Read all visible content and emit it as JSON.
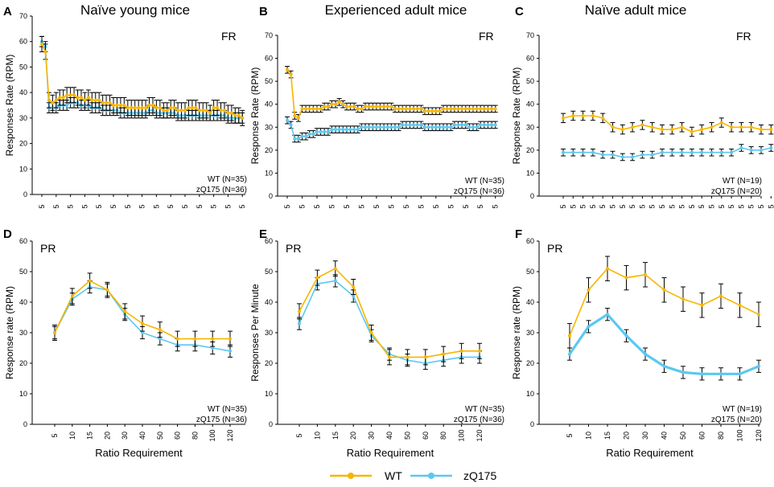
{
  "colors": {
    "wt": "#F7B500",
    "zq": "#5BC8F0",
    "err": "#000000",
    "axis": "#000000"
  },
  "legend": {
    "wt_label": "WT",
    "zq_label": "zQ175"
  },
  "chart_data": [
    {
      "id": "A",
      "letter": "A",
      "title": "Naïve young mice",
      "tag": "FR",
      "type": "line",
      "ylabel": "Responses  Rate (RPM)",
      "xlabel": "",
      "ylim": [
        0,
        70
      ],
      "yticks": [
        0,
        10,
        20,
        30,
        40,
        50,
        60,
        70
      ],
      "grid": false,
      "categories": [
        "5",
        "5",
        "5",
        "5",
        "5",
        "5",
        "5",
        "5",
        "5",
        "5",
        "5",
        "5",
        "5",
        "5",
        "5",
        "5",
        "5",
        "5",
        "5",
        "5",
        "5",
        "5",
        "5",
        "5",
        "5",
        "5",
        "5",
        "5",
        "5",
        "5",
        "5",
        "5",
        "5",
        "5",
        "5",
        "5",
        "5",
        "5",
        "5",
        "5",
        "5",
        "5",
        "5",
        "5",
        "5",
        "5",
        "5",
        "5",
        "5",
        "5",
        "5",
        "5",
        "5",
        "5",
        "5",
        "5",
        "5"
      ],
      "tick_every": 4,
      "n_labels": [
        "WT (N=35)",
        "zQ175 (N=36)"
      ],
      "series": [
        {
          "name": "WT",
          "err": 3,
          "values": [
            59,
            56,
            37,
            36,
            37,
            38,
            38,
            39,
            39,
            39,
            38,
            38,
            37,
            38,
            37,
            37,
            37,
            36,
            36,
            36,
            35,
            35,
            35,
            35,
            34,
            34,
            34,
            34,
            34,
            34,
            35,
            35,
            34,
            34,
            33,
            33,
            34,
            34,
            33,
            33,
            33,
            34,
            34,
            34,
            33,
            33,
            33,
            32,
            34,
            34,
            33,
            33,
            32,
            32,
            31,
            31,
            30
          ]
        },
        {
          "name": "zQ175",
          "err": 2,
          "values": [
            60,
            58,
            34,
            34,
            34,
            35,
            35,
            35,
            36,
            36,
            36,
            35,
            35,
            35,
            34,
            34,
            34,
            33,
            33,
            33,
            33,
            33,
            32,
            32,
            32,
            32,
            32,
            32,
            32,
            32,
            33,
            33,
            32,
            32,
            32,
            32,
            32,
            32,
            31,
            31,
            31,
            31,
            31,
            31,
            31,
            31,
            31,
            31,
            31,
            31,
            31,
            31,
            30,
            30,
            30,
            30,
            30
          ]
        }
      ]
    },
    {
      "id": "B",
      "letter": "B",
      "title": "Experienced adult mice",
      "tag": "FR",
      "type": "line",
      "ylabel": "Response Rate (RPM)",
      "xlabel": "",
      "ylim": [
        0,
        70
      ],
      "yticks": [
        0,
        10,
        20,
        30,
        40,
        50,
        60,
        70
      ],
      "grid": false,
      "categories": [
        "5",
        "5",
        "5",
        "5",
        "5",
        "5",
        "5",
        "5",
        "5",
        "5",
        "5",
        "5",
        "5",
        "5",
        "5",
        "5",
        "5",
        "5",
        "5",
        "5",
        "5",
        "5",
        "5",
        "5",
        "5",
        "5",
        "5",
        "5",
        "5",
        "5",
        "5",
        "5",
        "5",
        "5",
        "5",
        "5",
        "5",
        "5",
        "5",
        "5",
        "5",
        "5",
        "5",
        "5",
        "5",
        "5",
        "5",
        "5",
        "5",
        "5",
        "5",
        "5",
        "5",
        "5",
        "5",
        "5",
        "5"
      ],
      "tick_every": 4,
      "n_labels": [
        "WT (N=35)",
        "zQ175 (N=36)"
      ],
      "series": [
        {
          "name": "WT",
          "err": 1.5,
          "values": [
            55,
            53,
            35,
            34,
            38,
            38,
            38,
            38,
            38,
            38,
            39,
            39,
            40,
            40,
            41,
            40,
            39,
            39,
            39,
            38,
            38,
            39,
            39,
            39,
            39,
            39,
            39,
            39,
            39,
            38,
            38,
            38,
            38,
            38,
            38,
            38,
            38,
            37,
            37,
            37,
            37,
            37,
            38,
            38,
            38,
            38,
            38,
            38,
            38,
            38,
            38,
            38,
            38,
            38,
            38,
            38,
            38
          ]
        },
        {
          "name": "zQ175",
          "err": 1.5,
          "values": [
            33,
            31,
            25,
            25,
            26,
            26,
            27,
            27,
            28,
            28,
            28,
            28,
            29,
            29,
            29,
            29,
            29,
            29,
            29,
            29,
            30,
            30,
            30,
            30,
            30,
            30,
            30,
            30,
            30,
            30,
            30,
            31,
            31,
            31,
            31,
            31,
            31,
            30,
            30,
            30,
            30,
            30,
            30,
            30,
            30,
            31,
            31,
            31,
            31,
            30,
            30,
            30,
            31,
            31,
            31,
            31,
            31
          ]
        }
      ]
    },
    {
      "id": "C",
      "letter": "C",
      "title": "Naïve adult mice",
      "tag": "FR",
      "type": "line",
      "ylabel": "Response Rate  (RPM)",
      "xlabel": "",
      "ylim": [
        0,
        70
      ],
      "yticks": [
        0,
        10,
        20,
        30,
        40,
        50,
        60,
        70
      ],
      "grid": false,
      "categories": [
        "5",
        "5",
        "5",
        "5",
        "5",
        "5",
        "5",
        "5",
        "5",
        "5",
        "5",
        "5",
        "5",
        "5",
        "5",
        "5",
        "5",
        "5",
        "5",
        "5",
        "5",
        "5"
      ],
      "tick_every": 1,
      "n_labels": [
        "WT (N=19)",
        "zQ175 (N=20)"
      ],
      "series": [
        {
          "name": "WT",
          "err": 2,
          "values": [
            34,
            35,
            35,
            35,
            34,
            30,
            29,
            30,
            31,
            30,
            29,
            29,
            30,
            28,
            29,
            30,
            32,
            30,
            30,
            30,
            29,
            29
          ]
        },
        {
          "name": "zQ175",
          "err": 1.5,
          "values": [
            19,
            19,
            19,
            19,
            18,
            18,
            17,
            17,
            18,
            18,
            19,
            19,
            19,
            19,
            19,
            19,
            19,
            19,
            21,
            20,
            20,
            21
          ]
        }
      ]
    },
    {
      "id": "D",
      "letter": "D",
      "title": "",
      "tag": "PR",
      "type": "line",
      "ylabel": "Response rate (RPM)",
      "xlabel": "Ratio Requirement",
      "ylim": [
        0,
        60
      ],
      "yticks": [
        0,
        10,
        20,
        30,
        40,
        50,
        60
      ],
      "grid": false,
      "categories": [
        "5",
        "10",
        "15",
        "20",
        "30",
        "40",
        "50",
        "60",
        "80",
        "100",
        "120"
      ],
      "tick_every": 1,
      "n_labels": [
        "WT (N=35)",
        "zQ175 (N=36)"
      ],
      "series": [
        {
          "name": "WT",
          "err": 2.5,
          "values": [
            30,
            42,
            47,
            44,
            37,
            33,
            31,
            28,
            28,
            28,
            28
          ]
        },
        {
          "name": "zQ175",
          "err": 2,
          "values": [
            30,
            41,
            45,
            44,
            36,
            30,
            28,
            26,
            26,
            25,
            24
          ]
        }
      ]
    },
    {
      "id": "E",
      "letter": "E",
      "title": "",
      "tag": "PR",
      "type": "line",
      "ylabel": "Responses Per Minute",
      "xlabel": "Ratio Requirement",
      "ylim": [
        0,
        60
      ],
      "yticks": [
        0,
        10,
        20,
        30,
        40,
        50,
        60
      ],
      "grid": false,
      "categories": [
        "5",
        "10",
        "15",
        "20",
        "30",
        "40",
        "50",
        "60",
        "80",
        "100",
        "120"
      ],
      "tick_every": 1,
      "n_labels": [
        "WT (N=35)",
        "zQ175 (N=36)"
      ],
      "series": [
        {
          "name": "WT",
          "err": 2.5,
          "values": [
            37,
            48,
            51,
            45,
            30,
            22,
            22,
            22,
            23,
            24,
            24
          ]
        },
        {
          "name": "zQ175",
          "err": 2,
          "values": [
            33,
            46,
            47,
            42,
            29,
            23,
            21,
            20,
            21,
            22,
            22
          ]
        }
      ]
    },
    {
      "id": "F",
      "letter": "F",
      "title": "",
      "tag": "PR",
      "type": "line",
      "ylabel": "Response rate  (RPM)",
      "xlabel": "Ratio Requirement",
      "ylim": [
        0,
        60
      ],
      "yticks": [
        0,
        10,
        20,
        30,
        40,
        50,
        60
      ],
      "grid": false,
      "categories": [
        "5",
        "10",
        "15",
        "20",
        "30",
        "40",
        "50",
        "60",
        "80",
        "100",
        "120"
      ],
      "tick_every": 1,
      "n_labels": [
        "WT (N=19)",
        "zQ175 (N=20)"
      ],
      "series": [
        {
          "name": "WT",
          "err": 4,
          "values": [
            29,
            44,
            51,
            48,
            49,
            44,
            41,
            39,
            42,
            39,
            36
          ]
        },
        {
          "name": "zQ175",
          "err": 2,
          "values": [
            23,
            32,
            36,
            29,
            23,
            19,
            17,
            16.5,
            16.5,
            16.5,
            19
          ]
        }
      ]
    }
  ]
}
